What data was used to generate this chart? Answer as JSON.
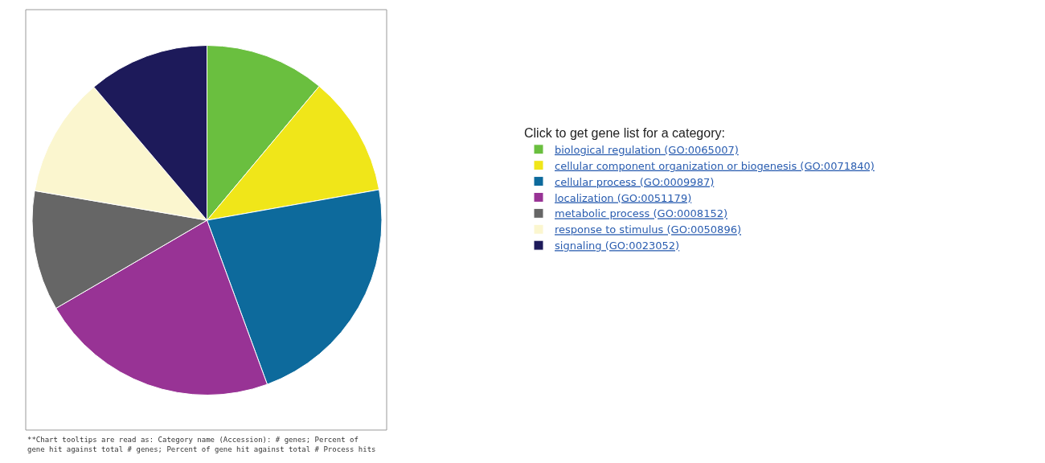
{
  "chart_data": {
    "type": "pie",
    "legend_title": "Click to get gene list for a category:",
    "categories": [
      "biological regulation (GO:0065007)",
      "cellular component organization or biogenesis (GO:0071840)",
      "cellular process (GO:0009987)",
      "localization (GO:0051179)",
      "metabolic process (GO:0008152)",
      "response to stimulus (GO:0050896)",
      "signaling (GO:0023052)"
    ],
    "values": [
      11.1,
      11.1,
      22.2,
      22.2,
      11.1,
      11.1,
      11.2
    ],
    "colors": [
      "#6abf3f",
      "#f0e619",
      "#0d6a9c",
      "#983395",
      "#666666",
      "#fbf6cf",
      "#1d1a5a"
    ],
    "legend": "right",
    "annotations": [
      "**Chart tooltips are read as: Category name (Accession): # genes; Percent of gene hit against total # genes; Percent of gene hit against total # Process hits"
    ]
  }
}
